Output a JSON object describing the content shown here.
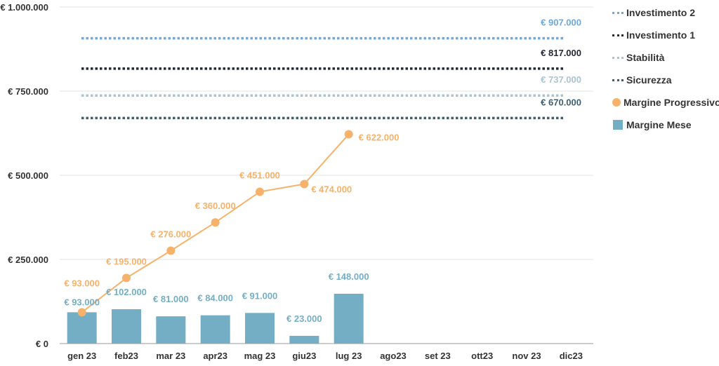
{
  "chart_data": {
    "type": "bar",
    "categories": [
      "gen 23",
      "feb23",
      "mar 23",
      "apr23",
      "mag 23",
      "giu23",
      "lug 23",
      "ago23",
      "set 23",
      "ott23",
      "nov 23",
      "dic23"
    ],
    "y_ticks": [
      {
        "value": 0,
        "label": "€ 0"
      },
      {
        "value": 250000,
        "label": "€ 250.000"
      },
      {
        "value": 500000,
        "label": "€ 500.000"
      },
      {
        "value": 750000,
        "label": "€ 750.000"
      },
      {
        "value": 1000000,
        "label": "€ 1.000.000"
      }
    ],
    "ylim": [
      0,
      1000000
    ],
    "grid": true,
    "legend_position": "right",
    "bars": {
      "name": "Margine Mese",
      "color": "#73aec4",
      "values": [
        93000,
        102000,
        81000,
        84000,
        91000,
        23000,
        148000,
        null,
        null,
        null,
        null,
        null
      ],
      "labels": [
        "€ 93.000",
        "€ 102.000",
        "€ 81.000",
        "€ 84.000",
        "€ 91.000",
        "€ 23.000",
        "€ 148.000",
        "",
        "",
        "",
        "",
        ""
      ]
    },
    "line": {
      "name": "Margine Progressivo",
      "color": "#f6b26b",
      "values": [
        93000,
        195000,
        276000,
        360000,
        451000,
        474000,
        622000,
        null,
        null,
        null,
        null,
        null
      ],
      "labels": [
        "€ 93.000",
        "€ 195.000",
        "€ 276.000",
        "€ 360.000",
        "€ 451.000",
        "€ 474.000",
        "€ 622.000",
        "",
        "",
        "",
        "",
        ""
      ]
    },
    "thresholds": [
      {
        "name": "Investimento 2",
        "value": 907000,
        "label": "€ 907.000",
        "color": "#6fa8dc"
      },
      {
        "name": "Investimento 1",
        "value": 817000,
        "label": "€ 817.000",
        "color": "#222a35"
      },
      {
        "name": "Stabilità",
        "value": 737000,
        "label": "€ 737.000",
        "color": "#a9c4d2"
      },
      {
        "name": "Sicurezza",
        "value": 670000,
        "label": "€ 670.000",
        "color": "#3d5f6f"
      }
    ]
  },
  "legend": {
    "items": [
      {
        "label": "Investimento 2",
        "marker": "dash",
        "color": "#6fa8dc"
      },
      {
        "label": "Investimento 1",
        "marker": "dash",
        "color": "#222a35"
      },
      {
        "label": "Stabilità",
        "marker": "dash",
        "color": "#a9c4d2"
      },
      {
        "label": "Sicurezza",
        "marker": "dash",
        "color": "#3d5f6f"
      },
      {
        "label": "Margine Progressivo",
        "marker": "dot",
        "color": "#f6b26b"
      },
      {
        "label": "Margine Mese",
        "marker": "square",
        "color": "#73aec4"
      }
    ]
  }
}
